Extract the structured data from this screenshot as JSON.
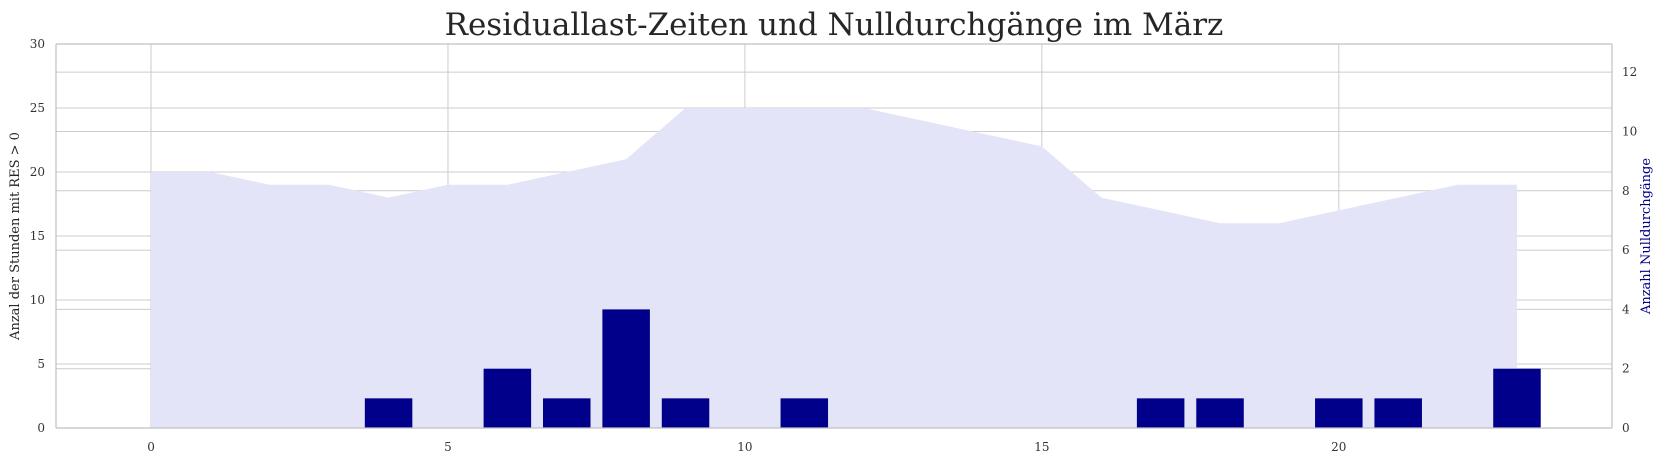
{
  "chart_data": {
    "type": "bar",
    "title": "Residuallast-Zeiten und Nulldurchgänge im März",
    "ylabel_left": "Anzal der Stunden mit RES > 0",
    "ylabel_right": "Anzahl Nulldurchgänge",
    "colors": {
      "area": "#e3e4f8",
      "bars": "#00008b",
      "right_label": "#00008b",
      "grid": "#cccccc",
      "axis": "#c0c0c0"
    },
    "grid": true,
    "xlim": [
      -1.6,
      24.6
    ],
    "ylim_left": [
      0,
      30
    ],
    "ylim_right": [
      0,
      12.95
    ],
    "x_ticks": [
      0,
      5,
      10,
      15,
      20
    ],
    "y_ticks_left": [
      0,
      5,
      10,
      15,
      20,
      25,
      30
    ],
    "y_ticks_right": [
      0,
      2,
      4,
      6,
      8,
      10,
      12
    ],
    "series": [
      {
        "type": "area",
        "axis": "left",
        "x": [
          0,
          1,
          2,
          3,
          4,
          5,
          6,
          7,
          8,
          9,
          10,
          11,
          12,
          13,
          14,
          15,
          16,
          17,
          18,
          19,
          20,
          21,
          22,
          23
        ],
        "values": [
          20,
          20,
          19,
          19,
          18,
          19,
          19,
          20,
          21,
          25,
          25,
          25,
          25,
          24,
          23,
          22,
          18,
          17,
          16,
          16,
          17,
          18,
          19,
          19
        ]
      },
      {
        "type": "bar",
        "axis": "right",
        "x": [
          0,
          1,
          2,
          3,
          4,
          5,
          6,
          7,
          8,
          9,
          10,
          11,
          12,
          13,
          14,
          15,
          16,
          17,
          18,
          19,
          20,
          21,
          22,
          23
        ],
        "values": [
          0,
          0,
          0,
          0,
          1,
          0,
          2,
          1,
          4,
          1,
          0,
          1,
          0,
          0,
          0,
          0,
          0,
          1,
          1,
          0,
          1,
          1,
          0,
          2
        ]
      }
    ]
  }
}
